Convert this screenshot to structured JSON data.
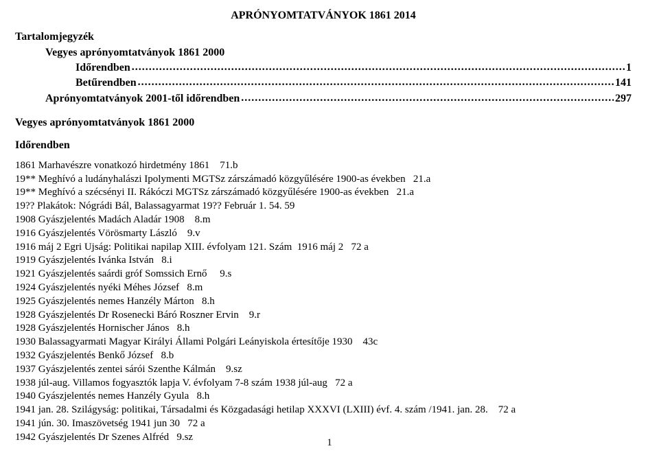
{
  "title": "APRÓNYOMTATVÁNYOK 1861 2014",
  "toc_heading": "Tartalomjegyzék",
  "toc": [
    {
      "label": "Vegyes aprónyomtatványok 1861 2000",
      "page": "",
      "indent": 1,
      "nodots": true
    },
    {
      "label": "Időrendben",
      "page": "1",
      "indent": 2
    },
    {
      "label": "Betűrendben",
      "page": "141",
      "indent": 2
    },
    {
      "label": "Aprónyomtatványok 2001-től időrendben",
      "page": "297",
      "indent": 1
    }
  ],
  "section_title": "Vegyes aprónyomtatványok 1861 2000",
  "sub_heading": "Időrendben",
  "entries": [
    "1861 Marhavészre vonatkozó hirdetmény 1861    71.b",
    "19** Meghívó a ludányhalászi Ipolymenti MGTSz zárszámadó közgyűlésére 1900-as években   21.a",
    "19** Meghívó a szécsényi II. Rákóczi MGTSz zárszámadó közgyűlésére 1900-as években   21.a",
    "19?? Plakátok: Nógrádi Bál, Balassagyarmat 19?? Február 1. 54. 59",
    "1908 Gyászjelentés Madách Aladár 1908    8.m",
    "1916 Gyászjelentés Vörösmarty László    9.v",
    "1916 máj 2 Egri Ujság: Politikai napilap XIII. évfolyam 121. Szám  1916 máj 2   72 a",
    "1919 Gyászjelentés Ivánka István   8.i",
    "1921 Gyászjelentés saárdi gróf Somssich Ernő     9.s",
    "1924 Gyászjelentés nyéki Méhes József   8.m",
    "1925 Gyászjelentés nemes Hanzély Márton   8.h",
    "1928 Gyászjelentés Dr Rosenecki Báró Roszner Ervin    9.r",
    "1928 Gyászjelentés Hornischer János   8.h",
    "1930 Balassagyarmati Magyar Királyi Állami Polgári Leányiskola értesítője 1930    43c",
    "1932 Gyászjelentés Benkő József   8.b",
    "1937 Gyászjelentés zentei sárói Szenthe Kálmán    9.sz",
    "1938 júl-aug. Villamos fogyasztók lapja V. évfolyam 7-8 szám 1938 júl-aug   72 a",
    "1940 Gyászjelentés nemes Hanzély Gyula   8.h",
    "1941 jan. 28. Szilágyság: politikai, Társadalmi és Közgadasági hetilap XXXVI (LXIII) évf. 4. szám /1941. jan. 28.    72 a",
    "1941 jún. 30. Imaszövetség 1941 jun 30   72 a",
    "1942 Gyászjelentés Dr Szenes Alfréd   9.sz"
  ],
  "page_number": "1"
}
